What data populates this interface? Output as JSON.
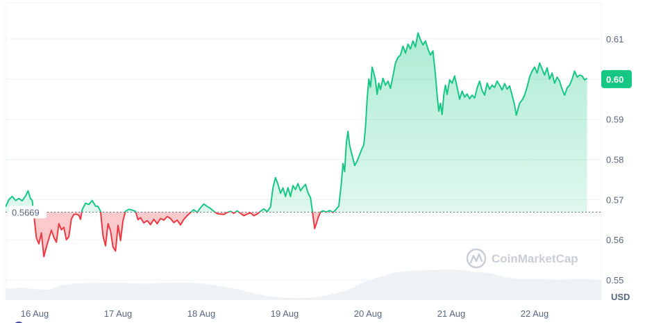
{
  "chart_data": {
    "type": "area",
    "currency": "USD",
    "reference_price": 0.5669,
    "reference_label": "0.5669",
    "current_price_label": "0.60",
    "current_price": 0.6,
    "ylim": [
      0.545,
      0.619
    ],
    "y_ticks": [
      0.55,
      0.56,
      0.57,
      0.58,
      0.59,
      0.6,
      0.61
    ],
    "y_tick_labels": [
      "0.55",
      "0.56",
      "0.57",
      "0.58",
      "0.59",
      "0.60",
      "0.61"
    ],
    "xlim": [
      0,
      7.15
    ],
    "x_ticks": [
      0.35,
      1.35,
      2.35,
      3.35,
      4.35,
      5.35,
      6.35
    ],
    "x_tick_labels": [
      "16 Aug",
      "17 Aug",
      "18 Aug",
      "19 Aug",
      "20 Aug",
      "21 Aug",
      "22 Aug"
    ],
    "x_unit": "days since start of visible range",
    "colors": {
      "up": "#16c784",
      "down": "#ea3943",
      "up_fill": "#16c784",
      "down_fill": "#ea3943"
    },
    "series": [
      {
        "name": "Price",
        "points": [
          [
            0.0,
            0.5682
          ],
          [
            0.04,
            0.57
          ],
          [
            0.08,
            0.5708
          ],
          [
            0.12,
            0.5698
          ],
          [
            0.16,
            0.5703
          ],
          [
            0.2,
            0.5697
          ],
          [
            0.24,
            0.5709
          ],
          [
            0.27,
            0.5722
          ],
          [
            0.3,
            0.5702
          ],
          [
            0.32,
            0.5698
          ],
          [
            0.34,
            0.5662
          ],
          [
            0.37,
            0.5605
          ],
          [
            0.4,
            0.559
          ],
          [
            0.43,
            0.5617
          ],
          [
            0.46,
            0.5558
          ],
          [
            0.49,
            0.5582
          ],
          [
            0.52,
            0.5603
          ],
          [
            0.55,
            0.5624
          ],
          [
            0.58,
            0.5606
          ],
          [
            0.61,
            0.5594
          ],
          [
            0.64,
            0.564
          ],
          [
            0.67,
            0.5625
          ],
          [
            0.7,
            0.5631
          ],
          [
            0.73,
            0.56
          ],
          [
            0.76,
            0.5608
          ],
          [
            0.79,
            0.5652
          ],
          [
            0.82,
            0.5663
          ],
          [
            0.85,
            0.5664
          ],
          [
            0.88,
            0.5661
          ],
          [
            0.9,
            0.5651
          ],
          [
            0.92,
            0.5675
          ],
          [
            0.96,
            0.5691
          ],
          [
            1.0,
            0.5688
          ],
          [
            1.04,
            0.5698
          ],
          [
            1.08,
            0.5684
          ],
          [
            1.11,
            0.5683
          ],
          [
            1.14,
            0.5671
          ],
          [
            1.17,
            0.561
          ],
          [
            1.2,
            0.5585
          ],
          [
            1.23,
            0.564
          ],
          [
            1.26,
            0.5622
          ],
          [
            1.29,
            0.5582
          ],
          [
            1.32,
            0.5572
          ],
          [
            1.35,
            0.5636
          ],
          [
            1.38,
            0.5598
          ],
          [
            1.41,
            0.5648
          ],
          [
            1.44,
            0.5671
          ],
          [
            1.48,
            0.5676
          ],
          [
            1.52,
            0.5674
          ],
          [
            1.56,
            0.5671
          ],
          [
            1.59,
            0.565
          ],
          [
            1.62,
            0.5655
          ],
          [
            1.66,
            0.5642
          ],
          [
            1.7,
            0.5648
          ],
          [
            1.74,
            0.5638
          ],
          [
            1.78,
            0.5651
          ],
          [
            1.82,
            0.564
          ],
          [
            1.86,
            0.5653
          ],
          [
            1.9,
            0.5649
          ],
          [
            1.94,
            0.5658
          ],
          [
            1.98,
            0.5653
          ],
          [
            2.02,
            0.5643
          ],
          [
            2.06,
            0.5649
          ],
          [
            2.1,
            0.5637
          ],
          [
            2.14,
            0.5651
          ],
          [
            2.18,
            0.566
          ],
          [
            2.22,
            0.5668
          ],
          [
            2.26,
            0.5675
          ],
          [
            2.3,
            0.5668
          ],
          [
            2.34,
            0.568
          ],
          [
            2.38,
            0.5689
          ],
          [
            2.42,
            0.5683
          ],
          [
            2.46,
            0.5678
          ],
          [
            2.5,
            0.5671
          ],
          [
            2.54,
            0.5665
          ],
          [
            2.58,
            0.5664
          ],
          [
            2.62,
            0.5663
          ],
          [
            2.66,
            0.5668
          ],
          [
            2.7,
            0.5671
          ],
          [
            2.74,
            0.5666
          ],
          [
            2.78,
            0.5672
          ],
          [
            2.82,
            0.5666
          ],
          [
            2.86,
            0.566
          ],
          [
            2.9,
            0.5664
          ],
          [
            2.94,
            0.5667
          ],
          [
            2.98,
            0.566
          ],
          [
            3.02,
            0.5664
          ],
          [
            3.06,
            0.5671
          ],
          [
            3.1,
            0.5677
          ],
          [
            3.14,
            0.567
          ],
          [
            3.18,
            0.5682
          ],
          [
            3.21,
            0.573
          ],
          [
            3.24,
            0.5755
          ],
          [
            3.27,
            0.5738
          ],
          [
            3.3,
            0.5716
          ],
          [
            3.33,
            0.5729
          ],
          [
            3.36,
            0.5708
          ],
          [
            3.39,
            0.573
          ],
          [
            3.42,
            0.5708
          ],
          [
            3.45,
            0.5735
          ],
          [
            3.48,
            0.5725
          ],
          [
            3.51,
            0.574
          ],
          [
            3.54,
            0.5722
          ],
          [
            3.57,
            0.5731
          ],
          [
            3.6,
            0.5738
          ],
          [
            3.63,
            0.5717
          ],
          [
            3.66,
            0.5705
          ],
          [
            3.69,
            0.566
          ],
          [
            3.71,
            0.5628
          ],
          [
            3.73,
            0.564
          ],
          [
            3.75,
            0.5654
          ],
          [
            3.78,
            0.5669
          ],
          [
            3.81,
            0.5672
          ],
          [
            3.85,
            0.5669
          ],
          [
            3.89,
            0.5673
          ],
          [
            3.93,
            0.5668
          ],
          [
            3.96,
            0.5674
          ],
          [
            4.0,
            0.5684
          ],
          [
            4.03,
            0.574
          ],
          [
            4.05,
            0.579
          ],
          [
            4.07,
            0.577
          ],
          [
            4.09,
            0.584
          ],
          [
            4.11,
            0.587
          ],
          [
            4.13,
            0.5835
          ],
          [
            4.16,
            0.581
          ],
          [
            4.19,
            0.5785
          ],
          [
            4.22,
            0.5796
          ],
          [
            4.25,
            0.5812
          ],
          [
            4.28,
            0.5828
          ],
          [
            4.3,
            0.5836
          ],
          [
            4.32,
            0.588
          ],
          [
            4.34,
            0.595
          ],
          [
            4.36,
            0.6
          ],
          [
            4.38,
            0.598
          ],
          [
            4.4,
            0.603
          ],
          [
            4.42,
            0.6015
          ],
          [
            4.44,
            0.5997
          ],
          [
            4.46,
            0.5962
          ],
          [
            4.48,
            0.599
          ],
          [
            4.5,
            0.5974
          ],
          [
            4.53,
            0.6002
          ],
          [
            4.56,
            0.5985
          ],
          [
            4.59,
            0.5995
          ],
          [
            4.62,
            0.5977
          ],
          [
            4.65,
            0.6008
          ],
          [
            4.68,
            0.604
          ],
          [
            4.71,
            0.6054
          ],
          [
            4.74,
            0.606
          ],
          [
            4.77,
            0.6082
          ],
          [
            4.8,
            0.6065
          ],
          [
            4.83,
            0.6087
          ],
          [
            4.86,
            0.6075
          ],
          [
            4.89,
            0.6095
          ],
          [
            4.92,
            0.608
          ],
          [
            4.95,
            0.6115
          ],
          [
            4.98,
            0.6098
          ],
          [
            5.01,
            0.6085
          ],
          [
            5.04,
            0.6095
          ],
          [
            5.07,
            0.6075
          ],
          [
            5.1,
            0.606
          ],
          [
            5.13,
            0.607
          ],
          [
            5.16,
            0.601
          ],
          [
            5.18,
            0.596
          ],
          [
            5.2,
            0.592
          ],
          [
            5.22,
            0.594
          ],
          [
            5.24,
            0.5912
          ],
          [
            5.26,
            0.596
          ],
          [
            5.28,
            0.5985
          ],
          [
            5.3,
            0.5962
          ],
          [
            5.33,
            0.5998
          ],
          [
            5.36,
            0.599
          ],
          [
            5.39,
            0.6008
          ],
          [
            5.42,
            0.598
          ],
          [
            5.45,
            0.595
          ],
          [
            5.48,
            0.597
          ],
          [
            5.51,
            0.5955
          ],
          [
            5.54,
            0.5963
          ],
          [
            5.57,
            0.5951
          ],
          [
            5.6,
            0.596
          ],
          [
            5.63,
            0.5953
          ],
          [
            5.66,
            0.5978
          ],
          [
            5.69,
            0.5995
          ],
          [
            5.72,
            0.5972
          ],
          [
            5.75,
            0.596
          ],
          [
            5.78,
            0.599
          ],
          [
            5.81,
            0.5975
          ],
          [
            5.84,
            0.5985
          ],
          [
            5.87,
            0.5979
          ],
          [
            5.9,
            0.5995
          ],
          [
            5.93,
            0.5985
          ],
          [
            5.96,
            0.5973
          ],
          [
            5.99,
            0.5989
          ],
          [
            6.02,
            0.5975
          ],
          [
            6.05,
            0.5983
          ],
          [
            6.08,
            0.596
          ],
          [
            6.11,
            0.5935
          ],
          [
            6.13,
            0.591
          ],
          [
            6.15,
            0.5925
          ],
          [
            6.17,
            0.594
          ],
          [
            6.2,
            0.5948
          ],
          [
            6.23,
            0.596
          ],
          [
            6.26,
            0.598
          ],
          [
            6.29,
            0.6005
          ],
          [
            6.32,
            0.602
          ],
          [
            6.35,
            0.603
          ],
          [
            6.38,
            0.6015
          ],
          [
            6.41,
            0.604
          ],
          [
            6.44,
            0.6025
          ],
          [
            6.47,
            0.601
          ],
          [
            6.5,
            0.6028
          ],
          [
            6.53,
            0.6
          ],
          [
            6.56,
            0.6015
          ],
          [
            6.59,
            0.599
          ],
          [
            6.62,
            0.6005
          ],
          [
            6.65,
            0.5995
          ],
          [
            6.68,
            0.5975
          ],
          [
            6.71,
            0.596
          ],
          [
            6.74,
            0.5978
          ],
          [
            6.77,
            0.5985
          ],
          [
            6.8,
            0.6
          ],
          [
            6.83,
            0.602
          ],
          [
            6.86,
            0.6005
          ],
          [
            6.89,
            0.601
          ],
          [
            6.92,
            0.6008
          ],
          [
            6.95,
            0.5998
          ],
          [
            6.98,
            0.6002
          ]
        ]
      },
      {
        "name": "Volume",
        "relative_values": [
          0.55,
          0.6,
          0.52,
          0.5,
          0.72,
          0.8,
          0.82,
          0.83,
          0.84,
          0.8,
          0.78,
          0.82,
          0.84,
          0.84,
          0.8,
          0.72,
          0.6,
          0.48,
          0.3,
          0.18,
          0.12,
          0.1,
          0.12,
          0.2,
          0.35,
          0.55,
          0.9,
          1.1,
          1.3,
          1.4,
          1.42,
          1.45,
          1.46,
          1.44,
          1.35,
          1.3,
          1.12,
          1.02,
          1.0,
          1.0,
          0.98,
          1.0,
          1.0,
          0.98
        ]
      }
    ]
  },
  "watermark": {
    "text": "CoinMarketCap",
    "icon": "coinmarketcap-logo-icon"
  }
}
